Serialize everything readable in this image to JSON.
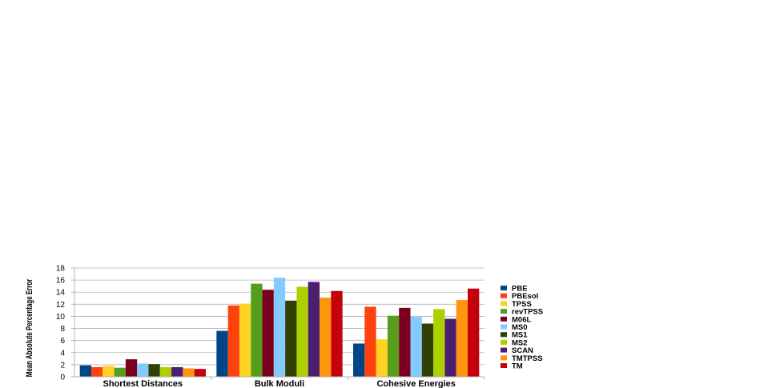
{
  "chart_data": {
    "type": "bar",
    "title": "",
    "xlabel": "",
    "ylabel": "Mean Absolute Percentage Error",
    "ylim": [
      0,
      18
    ],
    "yticks": [
      0,
      2,
      4,
      6,
      8,
      10,
      12,
      14,
      16,
      18
    ],
    "grid": true,
    "legend_position": "right",
    "categories": [
      "Shortest Distances",
      "Bulk Moduli",
      "Cohesive Energies"
    ],
    "series": [
      {
        "name": "PBE",
        "color": "#004586",
        "values": [
          1.9,
          7.6,
          5.5
        ]
      },
      {
        "name": "PBEsol",
        "color": "#ff420e",
        "values": [
          1.6,
          11.8,
          11.6
        ]
      },
      {
        "name": "TPSS",
        "color": "#ffd320",
        "values": [
          1.8,
          12.1,
          6.2
        ]
      },
      {
        "name": "revTPSS",
        "color": "#579d1c",
        "values": [
          1.5,
          15.4,
          10.1
        ]
      },
      {
        "name": "M06L",
        "color": "#7e0021",
        "values": [
          2.9,
          14.4,
          11.4
        ]
      },
      {
        "name": "MS0",
        "color": "#83caff",
        "values": [
          2.2,
          16.4,
          9.9
        ]
      },
      {
        "name": "MS1",
        "color": "#314004",
        "values": [
          2.1,
          12.6,
          8.8
        ]
      },
      {
        "name": "MS2",
        "color": "#aecf00",
        "values": [
          1.6,
          14.9,
          11.2
        ]
      },
      {
        "name": "SCAN",
        "color": "#4b1f6f",
        "values": [
          1.6,
          15.7,
          9.6
        ]
      },
      {
        "name": "TMTPSS",
        "color": "#ff950e",
        "values": [
          1.4,
          13.1,
          12.7
        ]
      },
      {
        "name": "TM",
        "color": "#c5000b",
        "values": [
          1.3,
          14.2,
          14.6
        ]
      }
    ]
  }
}
